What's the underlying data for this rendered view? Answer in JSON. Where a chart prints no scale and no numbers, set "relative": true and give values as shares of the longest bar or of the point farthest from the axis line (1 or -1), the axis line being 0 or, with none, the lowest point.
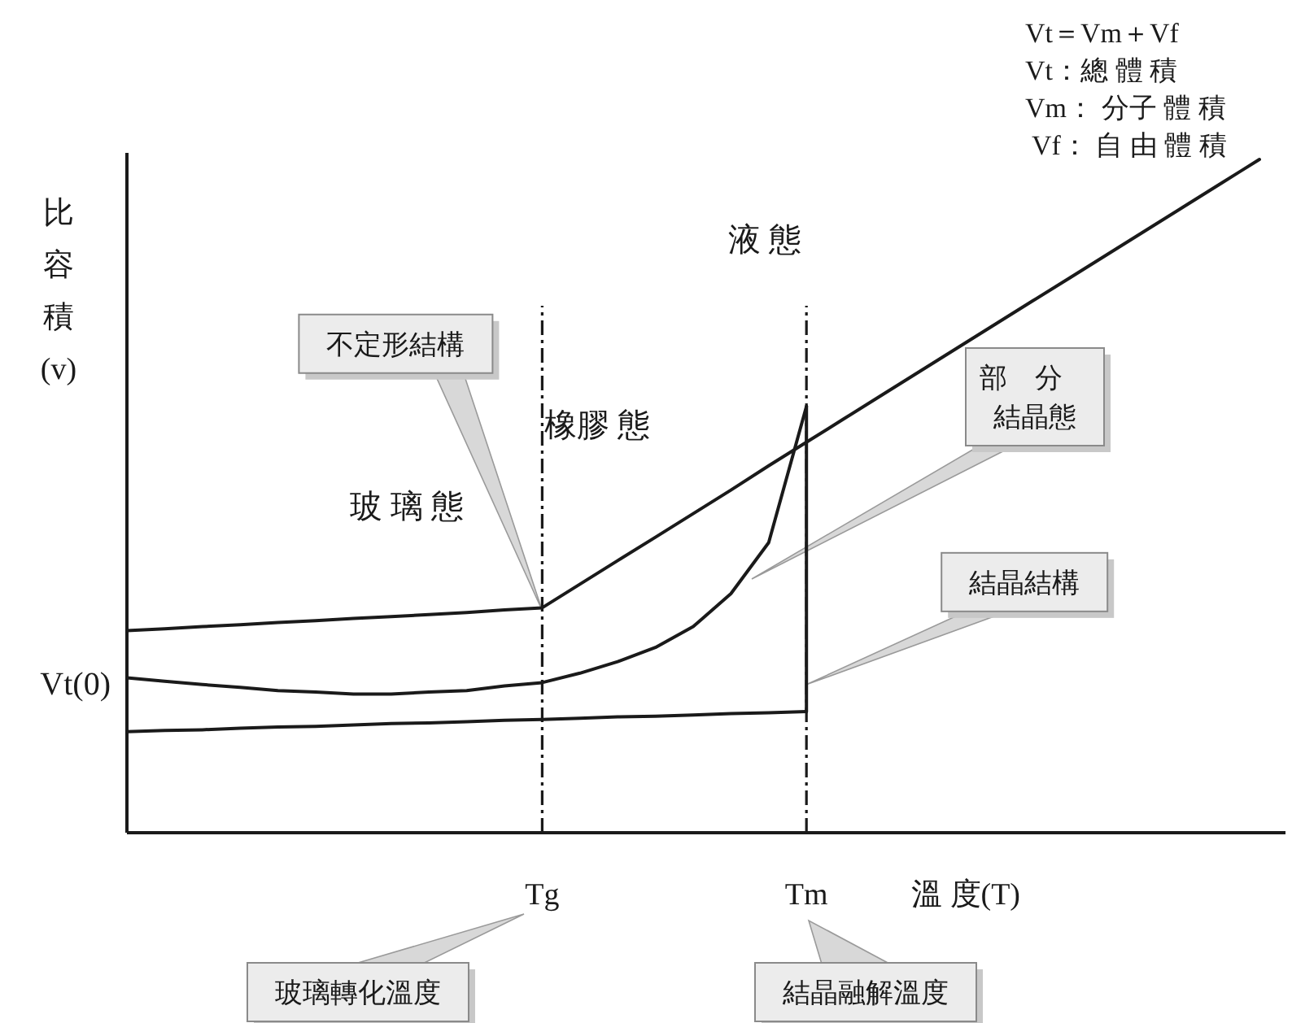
{
  "chart_data": {
    "type": "line",
    "relative": true,
    "ylabel": "比容積(v)",
    "xlabel": "溫 度(T)",
    "categories": [
      null,
      null,
      null,
      null,
      null,
      null,
      null,
      null,
      null,
      null,
      null,
      "Tg",
      null,
      null,
      null,
      null,
      null,
      null,
      "Tm",
      null,
      null,
      null,
      null,
      null,
      null,
      null,
      null,
      null,
      null,
      null,
      null
    ],
    "line_style": "solid",
    "series": [
      {
        "color": "#1a1a1a",
        "values": [
          0.3,
          0.303,
          0.306,
          0.309,
          0.312,
          0.315,
          0.318,
          0.321,
          0.324,
          0.327,
          0.331,
          0.334,
          0.369,
          0.404,
          0.439,
          0.474,
          0.509,
          0.545,
          0.58,
          0.615,
          0.65,
          0.685,
          0.72,
          0.755,
          0.79,
          0.825,
          0.86,
          0.895,
          0.93,
          0.965,
          1
        ]
      },
      {
        "color": "#1a1a1a",
        "values": [
          0.23,
          0.225,
          0.22,
          0.216,
          0.211,
          0.209,
          0.206,
          0.206,
          0.209,
          0.211,
          0.218,
          0.223,
          0.237,
          0.254,
          0.275,
          0.306,
          0.355,
          0.431,
          0.633,
          null,
          null,
          null,
          null,
          null,
          null,
          null,
          null,
          null,
          null,
          null,
          null
        ]
      },
      {
        "color": "#1a1a1a",
        "values": [
          0.15,
          0.152,
          0.153,
          0.155,
          0.157,
          0.158,
          0.16,
          0.162,
          0.163,
          0.165,
          0.167,
          0.168,
          0.17,
          0.172,
          0.173,
          0.175,
          0.177,
          0.178,
          0.18,
          null,
          null,
          null,
          null,
          null,
          null,
          null,
          null,
          null,
          null,
          null,
          null
        ]
      },
      {
        "color": "#1a1a1a",
        "x": [
          "Tm",
          "Tm"
        ],
        "values": [
          0.633,
          0.18
        ]
      }
    ],
    "ref_lines": [
      {
        "axis": "x",
        "value": "Tg",
        "line_style": "dashed"
      },
      {
        "axis": "x",
        "value": "Tm",
        "line_style": "dashed"
      }
    ],
    "annotations": [
      "Vt＝Vm＋Vf",
      "Vt：總 體 積",
      "Vm： 分子 體 積",
      "Vf： 自 由 體 積",
      "液 態",
      "橡膠 態",
      "玻 璃 態",
      "Vt(0)",
      {
        "text": "不定形結構",
        "x": "Tg",
        "y": 0.33
      },
      "部分結晶態",
      {
        "text": "結晶結構",
        "x": "Tm",
        "y": 0.22
      },
      "玻璃轉化溫度",
      "結晶融解溫度"
    ]
  }
}
